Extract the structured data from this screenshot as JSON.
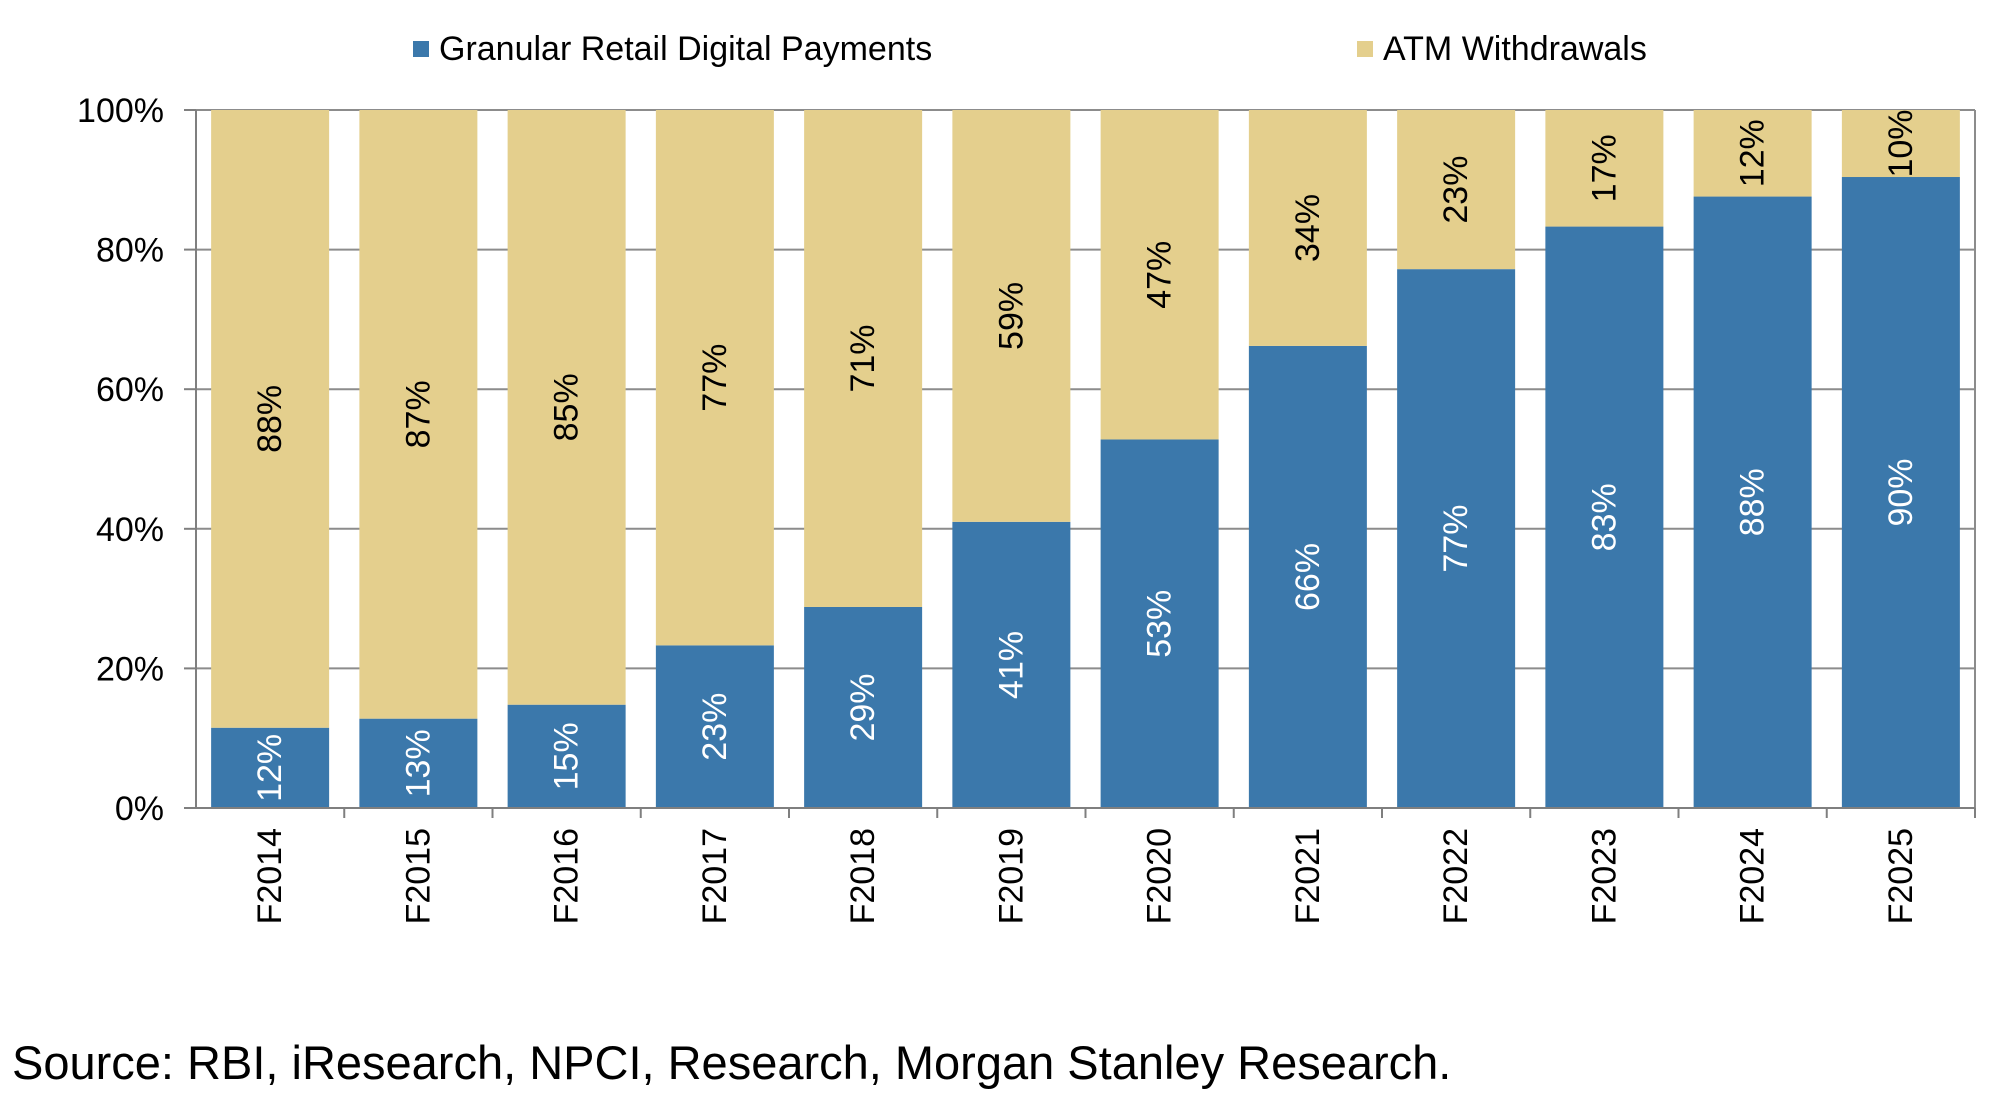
{
  "chart_data": {
    "type": "bar",
    "stacked": true,
    "percent": true,
    "categories": [
      "F2014",
      "F2015",
      "F2016",
      "F2017",
      "F2018",
      "F2019",
      "F2020",
      "F2021",
      "F2022",
      "F2023",
      "F2024",
      "F2025"
    ],
    "series": [
      {
        "name": "Granular Retail Digital Payments",
        "color": "#3b78ab",
        "label_color": "#ffffff",
        "values": [
          11.5,
          12.8,
          14.8,
          23.3,
          28.8,
          41,
          52.8,
          66.2,
          77.2,
          83.3,
          87.6,
          90.4
        ],
        "labels": [
          "12%",
          "13%",
          "15%",
          "23%",
          "29%",
          "41%",
          "53%",
          "66%",
          "77%",
          "83%",
          "88%",
          "90%"
        ]
      },
      {
        "name": "ATM Withdrawals",
        "color": "#e4cf8d",
        "label_color": "#000000",
        "values": [
          88.5,
          87.2,
          85.2,
          76.7,
          71.2,
          59,
          47.2,
          33.8,
          22.8,
          16.7,
          12.4,
          9.6
        ],
        "labels": [
          "88%",
          "87%",
          "85%",
          "77%",
          "71%",
          "59%",
          "47%",
          "34%",
          "23%",
          "17%",
          "12%",
          "10%"
        ]
      }
    ],
    "y_ticks": [
      "0%",
      "20%",
      "40%",
      "60%",
      "80%",
      "100%"
    ],
    "ylim": [
      0,
      100
    ],
    "grid": true,
    "legend_position": "top",
    "title": "",
    "xlabel": "",
    "ylabel": ""
  },
  "source": "Source: RBI, iResearch, NPCI, Research, Morgan Stanley Research."
}
